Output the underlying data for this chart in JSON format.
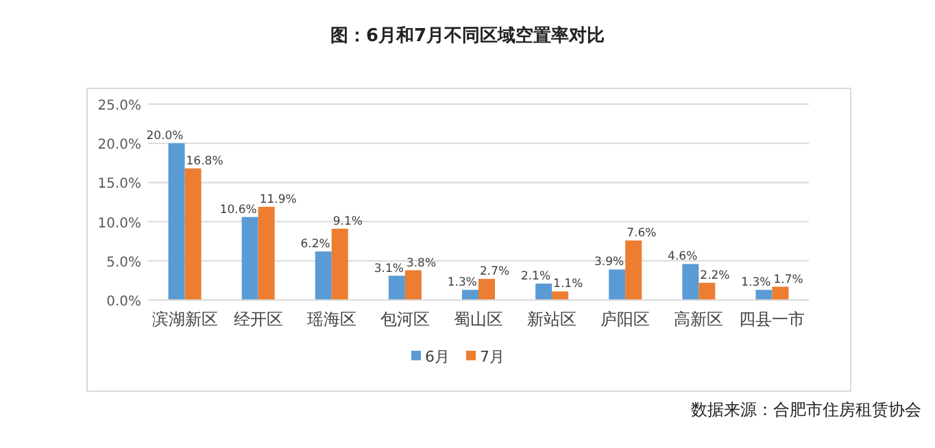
{
  "chart_data": {
    "type": "bar",
    "title": "图：6月和7月不同区域空置率对比",
    "categories": [
      "滨湖新区",
      "经开区",
      "瑶海区",
      "包河区",
      "蜀山区",
      "新站区",
      "庐阳区",
      "高新区",
      "四县一市"
    ],
    "series": [
      {
        "name": "6月",
        "color": "#5b9bd5",
        "values": [
          20.0,
          10.6,
          6.2,
          3.1,
          1.3,
          2.1,
          3.9,
          4.6,
          1.3
        ],
        "value_labels": [
          "20.0%",
          "10.6%",
          "6.2%",
          "3.1%",
          "1.3%",
          "2.1%",
          "3.9%",
          "4.6%",
          "1.3%"
        ]
      },
      {
        "name": "7月",
        "color": "#ed7d31",
        "values": [
          16.8,
          11.9,
          9.1,
          3.8,
          2.7,
          1.1,
          7.6,
          2.2,
          1.7
        ],
        "value_labels": [
          "16.8%",
          "11.9%",
          "9.1%",
          "3.8%",
          "2.7%",
          "1.1%",
          "7.6%",
          "2.2%",
          "1.7%"
        ]
      }
    ],
    "ylim": [
      0,
      25
    ],
    "yticks": [
      {
        "value": 0,
        "label": "0.0%"
      },
      {
        "value": 5,
        "label": "5.0%"
      },
      {
        "value": 10,
        "label": "10.0%"
      },
      {
        "value": 15,
        "label": "15.0%"
      },
      {
        "value": 20,
        "label": "20.0%"
      },
      {
        "value": 25,
        "label": "25.0%"
      }
    ],
    "grid": "y",
    "legend": "bottom",
    "annotations": [
      "数据来源：合肥市住房租赁协会"
    ]
  }
}
